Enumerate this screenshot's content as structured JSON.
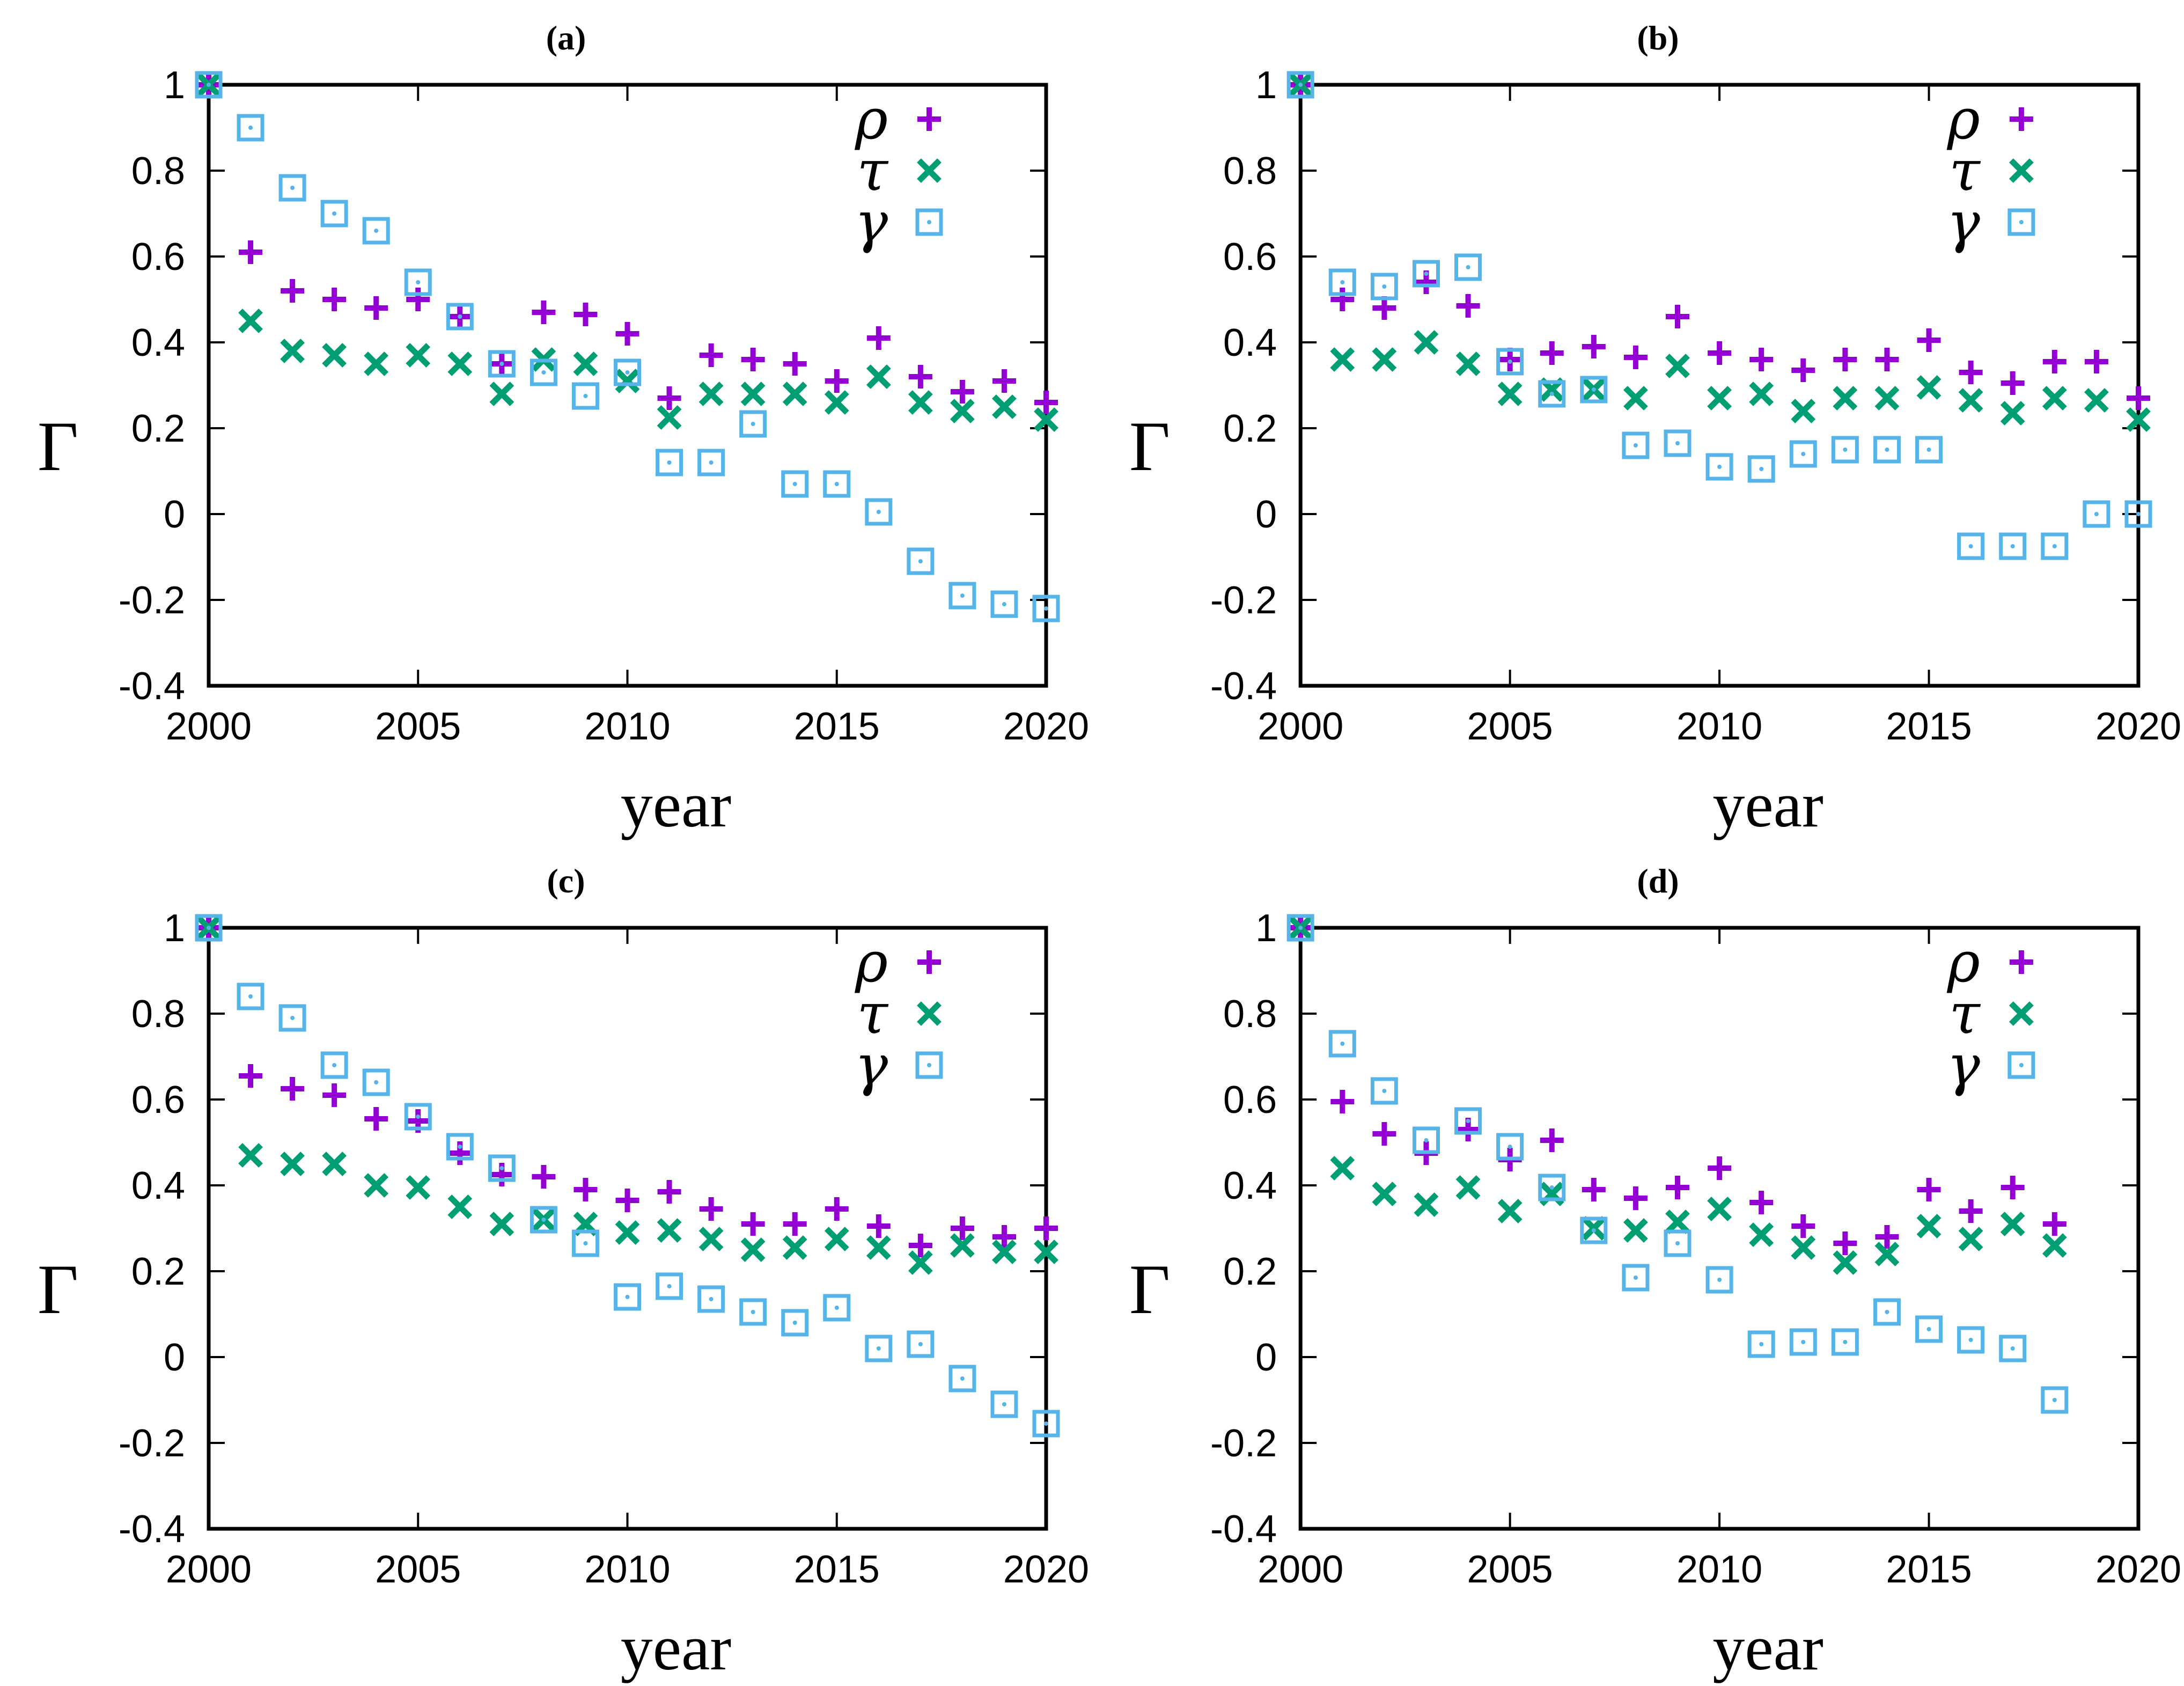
{
  "page": {
    "background": "#ffffff"
  },
  "colors": {
    "rho": "#9400d3",
    "tau": "#009e73",
    "gamma": "#56b4e9",
    "axis": "#000000"
  },
  "chart_data": [
    {
      "type": "scatter",
      "panel": "a",
      "title": "(a)",
      "xlabel": "year",
      "ylabel": "Γ",
      "xlim": [
        2000,
        2020
      ],
      "ylim": [
        -0.4,
        1.0
      ],
      "x_ticks": [
        2000,
        2005,
        2010,
        2015,
        2020
      ],
      "y_ticks": [
        -0.4,
        -0.2,
        0,
        0.2,
        0.4,
        0.6,
        0.8,
        1
      ],
      "grid": false,
      "legend_position": "top-right",
      "x": [
        2000,
        2001,
        2002,
        2003,
        2004,
        2005,
        2006,
        2007,
        2008,
        2009,
        2010,
        2011,
        2012,
        2013,
        2014,
        2015,
        2016,
        2017,
        2018,
        2019,
        2020
      ],
      "series": [
        {
          "name": "ρ",
          "marker": "plus",
          "color": "#9400d3",
          "values": [
            1,
            0.61,
            0.52,
            0.5,
            0.48,
            0.5,
            0.46,
            0.35,
            0.47,
            0.465,
            0.42,
            0.27,
            0.37,
            0.36,
            0.35,
            0.31,
            0.41,
            0.32,
            0.285,
            0.31,
            0.26
          ]
        },
        {
          "name": "τ",
          "marker": "times",
          "color": "#009e73",
          "values": [
            1,
            0.45,
            0.38,
            0.37,
            0.35,
            0.37,
            0.35,
            0.28,
            0.36,
            0.35,
            0.31,
            0.225,
            0.28,
            0.28,
            0.28,
            0.26,
            0.32,
            0.26,
            0.24,
            0.25,
            0.22
          ]
        },
        {
          "name": "γ",
          "marker": "square-dot",
          "color": "#56b4e9",
          "values": [
            1,
            0.9,
            0.76,
            0.7,
            0.66,
            0.54,
            0.46,
            0.35,
            0.33,
            0.275,
            0.33,
            0.12,
            0.12,
            0.21,
            0.07,
            0.07,
            0.005,
            -0.11,
            -0.19,
            -0.21,
            -0.22
          ]
        }
      ]
    },
    {
      "type": "scatter",
      "panel": "b",
      "title": "(b)",
      "xlabel": "year",
      "ylabel": "Γ",
      "xlim": [
        2000,
        2020
      ],
      "ylim": [
        -0.4,
        1.0
      ],
      "x_ticks": [
        2000,
        2005,
        2010,
        2015,
        2020
      ],
      "y_ticks": [
        -0.4,
        -0.2,
        0,
        0.2,
        0.4,
        0.6,
        0.8,
        1
      ],
      "grid": false,
      "legend_position": "top-right",
      "x": [
        2000,
        2001,
        2002,
        2003,
        2004,
        2005,
        2006,
        2007,
        2008,
        2009,
        2010,
        2011,
        2012,
        2013,
        2014,
        2015,
        2016,
        2017,
        2018,
        2019,
        2020
      ],
      "series": [
        {
          "name": "ρ",
          "marker": "plus",
          "color": "#9400d3",
          "values": [
            1,
            0.5,
            0.48,
            0.54,
            0.485,
            0.36,
            0.375,
            0.39,
            0.365,
            0.46,
            0.375,
            0.36,
            0.335,
            0.36,
            0.36,
            0.405,
            0.33,
            0.305,
            0.355,
            0.355,
            0.27
          ]
        },
        {
          "name": "τ",
          "marker": "times",
          "color": "#009e73",
          "values": [
            1,
            0.36,
            0.36,
            0.4,
            0.35,
            0.28,
            0.29,
            0.29,
            0.27,
            0.345,
            0.27,
            0.28,
            0.24,
            0.27,
            0.27,
            0.295,
            0.265,
            0.235,
            0.27,
            0.265,
            0.22
          ]
        },
        {
          "name": "γ",
          "marker": "square-dot",
          "color": "#56b4e9",
          "values": [
            1,
            0.54,
            0.53,
            0.56,
            0.575,
            0.355,
            0.28,
            0.29,
            0.16,
            0.165,
            0.11,
            0.105,
            0.14,
            0.15,
            0.15,
            0.15,
            -0.075,
            -0.075,
            -0.075,
            0,
            0
          ]
        }
      ]
    },
    {
      "type": "scatter",
      "panel": "c",
      "title": "(c)",
      "xlabel": "year",
      "ylabel": "Γ",
      "xlim": [
        2000,
        2020
      ],
      "ylim": [
        -0.4,
        1.0
      ],
      "x_ticks": [
        2000,
        2005,
        2010,
        2015,
        2020
      ],
      "y_ticks": [
        -0.4,
        -0.2,
        0,
        0.2,
        0.4,
        0.6,
        0.8,
        1
      ],
      "grid": false,
      "legend_position": "top-right",
      "x": [
        2000,
        2001,
        2002,
        2003,
        2004,
        2005,
        2006,
        2007,
        2008,
        2009,
        2010,
        2011,
        2012,
        2013,
        2014,
        2015,
        2016,
        2017,
        2018,
        2019,
        2020
      ],
      "series": [
        {
          "name": "ρ",
          "marker": "plus",
          "color": "#9400d3",
          "values": [
            1,
            0.655,
            0.625,
            0.61,
            0.555,
            0.55,
            0.475,
            0.425,
            0.42,
            0.39,
            0.365,
            0.385,
            0.345,
            0.31,
            0.31,
            0.345,
            0.305,
            0.26,
            0.3,
            0.28,
            0.3
          ]
        },
        {
          "name": "τ",
          "marker": "times",
          "color": "#009e73",
          "values": [
            1,
            0.47,
            0.45,
            0.45,
            0.4,
            0.395,
            0.35,
            0.31,
            0.32,
            0.31,
            0.29,
            0.295,
            0.275,
            0.25,
            0.255,
            0.275,
            0.255,
            0.22,
            0.26,
            0.245,
            0.245
          ]
        },
        {
          "name": "γ",
          "marker": "square-dot",
          "color": "#56b4e9",
          "values": [
            1,
            0.84,
            0.79,
            0.68,
            0.64,
            0.56,
            0.49,
            0.44,
            0.32,
            0.265,
            0.14,
            0.165,
            0.135,
            0.105,
            0.08,
            0.115,
            0.02,
            0.03,
            -0.05,
            -0.11,
            -0.155
          ]
        }
      ]
    },
    {
      "type": "scatter",
      "panel": "d",
      "title": "(d)",
      "xlabel": "year",
      "ylabel": "Γ",
      "xlim": [
        2000,
        2020
      ],
      "ylim": [
        -0.4,
        1.0
      ],
      "x_ticks": [
        2000,
        2005,
        2010,
        2015,
        2020
      ],
      "y_ticks": [
        -0.4,
        -0.2,
        0,
        0.2,
        0.4,
        0.6,
        0.8,
        1
      ],
      "grid": false,
      "legend_position": "top-right",
      "x": [
        2000,
        2001,
        2002,
        2003,
        2004,
        2005,
        2006,
        2007,
        2008,
        2009,
        2010,
        2011,
        2012,
        2013,
        2014,
        2015,
        2016,
        2017,
        2018
      ],
      "series": [
        {
          "name": "ρ",
          "marker": "plus",
          "color": "#9400d3",
          "values": [
            1,
            0.595,
            0.52,
            0.475,
            0.53,
            0.46,
            0.505,
            0.39,
            0.37,
            0.395,
            0.44,
            0.36,
            0.305,
            0.265,
            0.28,
            0.39,
            0.34,
            0.395,
            0.31
          ]
        },
        {
          "name": "τ",
          "marker": "times",
          "color": "#009e73",
          "values": [
            1,
            0.44,
            0.38,
            0.355,
            0.395,
            0.34,
            0.38,
            0.3,
            0.295,
            0.315,
            0.345,
            0.285,
            0.255,
            0.22,
            0.24,
            0.305,
            0.275,
            0.31,
            0.26
          ]
        },
        {
          "name": "γ",
          "marker": "square-dot",
          "color": "#56b4e9",
          "values": [
            1,
            0.73,
            0.62,
            0.505,
            0.55,
            0.49,
            0.395,
            0.295,
            0.185,
            0.265,
            0.18,
            0.03,
            0.035,
            0.035,
            0.105,
            0.065,
            0.04,
            0.02,
            -0.1
          ]
        }
      ]
    }
  ]
}
